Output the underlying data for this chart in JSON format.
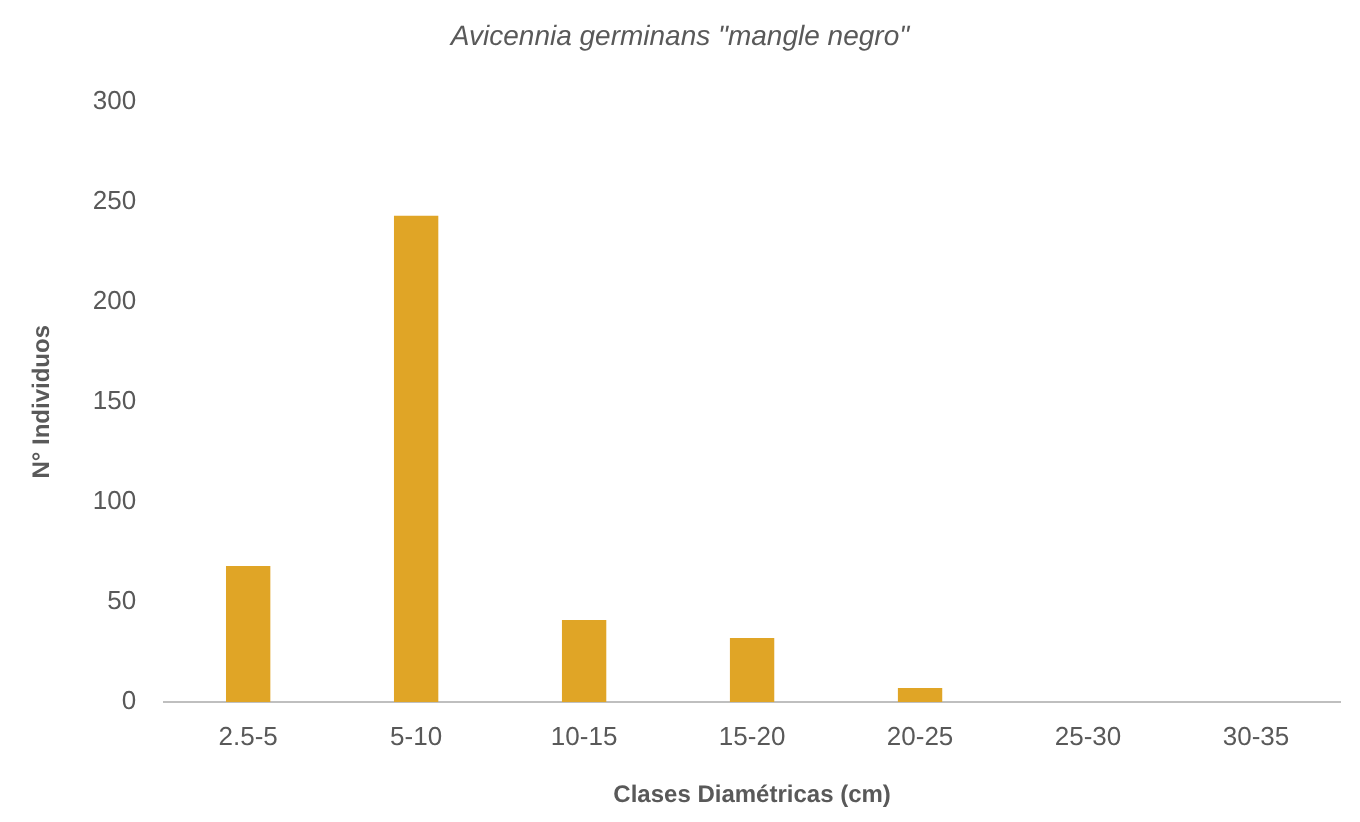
{
  "chart_data": {
    "type": "bar",
    "title": "Avicennia germinans \"mangle negro\"",
    "xlabel": "Clases Diamétricas (cm)",
    "ylabel": "N° Individuos",
    "categories": [
      "2.5-5",
      "5-10",
      "10-15",
      "15-20",
      "20-25",
      "25-30",
      "30-35"
    ],
    "values": [
      68,
      243,
      41,
      32,
      7,
      0,
      0
    ],
    "color": "#e0a526",
    "ylim": [
      0,
      300
    ],
    "yticks": [
      0,
      50,
      100,
      150,
      200,
      250,
      300
    ],
    "grid": false,
    "legend": false
  }
}
